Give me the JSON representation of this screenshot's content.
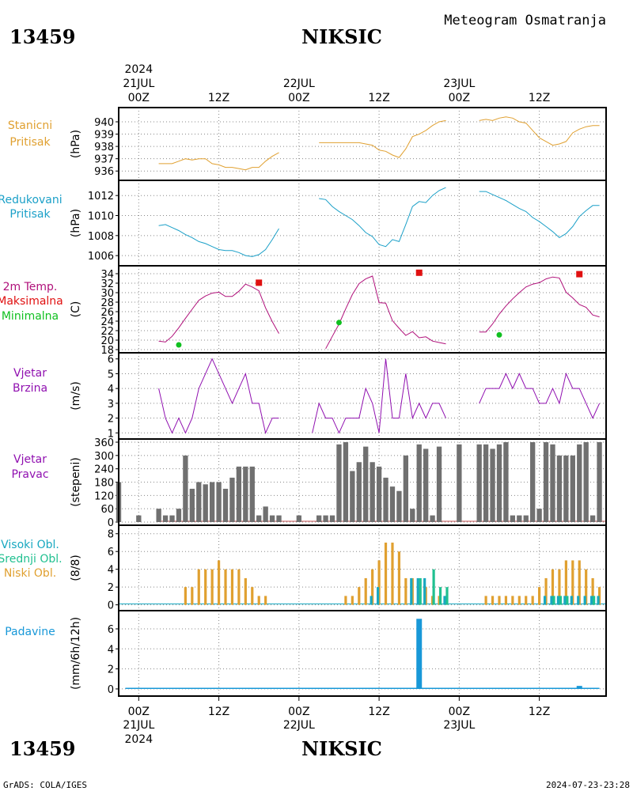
{
  "header": {
    "station_id": "13459",
    "station_name": "NIKSIC",
    "chart_title": "Meteogram Osmatranja"
  },
  "footer": {
    "station_id": "13459",
    "station_name": "NIKSIC",
    "credit": "GrADS: COLA/IGES",
    "timestamp": "2024-07-23-23:28"
  },
  "time_axis": {
    "year": "2024",
    "ticks": [
      {
        "hour": 0,
        "label": "00Z",
        "date": "21JUL"
      },
      {
        "hour": 12,
        "label": "12Z",
        "date": ""
      },
      {
        "hour": 24,
        "label": "00Z",
        "date": "22JUL"
      },
      {
        "hour": 36,
        "label": "12Z",
        "date": ""
      },
      {
        "hour": 48,
        "label": "00Z",
        "date": "23JUL"
      },
      {
        "hour": 60,
        "label": "12Z",
        "date": ""
      }
    ],
    "range_hours": [
      -3,
      70
    ]
  },
  "colors": {
    "station_pressure": "#e0a030",
    "reduced_pressure": "#1ba0c8",
    "temperature": "#b0107a",
    "tmax": "#e01010",
    "tmin": "#10c020",
    "wind": "#9010b0",
    "direction_bar": "#707070",
    "high_cloud": "#18a8c0",
    "mid_cloud": "#20c090",
    "low_cloud": "#e0a030",
    "precip": "#1898d8"
  },
  "chart_data": [
    {
      "type": "line",
      "panel": "station_pressure",
      "labels": [
        "Stanicni",
        "Pritisak"
      ],
      "ylabel": "(hPa)",
      "ylim": [
        935.5,
        940.9
      ],
      "yticks": [
        936,
        937,
        938,
        939,
        940
      ],
      "series": [
        {
          "x": [
            3,
            4,
            5,
            6,
            7,
            8,
            9,
            10,
            11,
            12,
            13,
            14,
            15,
            16,
            17,
            18,
            19,
            20,
            21
          ],
          "y": [
            936.6,
            936.6,
            936.6,
            936.8,
            937.0,
            936.9,
            937.0,
            937.0,
            936.6,
            936.5,
            936.3,
            936.3,
            936.2,
            936.1,
            936.3,
            936.3,
            936.8,
            937.2,
            937.5
          ]
        },
        {
          "x": [
            27,
            28,
            29,
            30,
            31,
            32,
            33,
            34,
            35,
            36,
            37,
            38,
            39,
            40,
            41,
            42,
            43,
            44,
            45,
            46
          ],
          "y": [
            938.3,
            938.3,
            938.3,
            938.3,
            938.3,
            938.3,
            938.3,
            938.2,
            938.1,
            937.7,
            937.6,
            937.3,
            937.1,
            937.8,
            938.8,
            939.0,
            939.3,
            939.7,
            940.0,
            940.1
          ]
        },
        {
          "x": [
            51,
            52,
            53,
            54,
            55,
            56,
            57,
            58,
            59,
            60,
            61,
            62,
            63,
            64,
            65,
            66,
            67,
            68,
            69
          ],
          "y": [
            940.1,
            940.2,
            940.1,
            940.3,
            940.4,
            940.3,
            940.0,
            939.9,
            939.3,
            938.7,
            938.4,
            938.1,
            938.2,
            938.4,
            939.1,
            939.4,
            939.6,
            939.7,
            939.7
          ]
        }
      ]
    },
    {
      "type": "line",
      "panel": "reduced_pressure",
      "labels": [
        "Redukovani",
        "Pritisak"
      ],
      "ylabel": "(hPa)",
      "ylim": [
        1005.3,
        1013.2
      ],
      "yticks": [
        1006,
        1008,
        1010,
        1012
      ],
      "series": [
        {
          "x": [
            3,
            4,
            5,
            6,
            7,
            8,
            9,
            10,
            11,
            12,
            13,
            14,
            15,
            16,
            17,
            18,
            19,
            20,
            21
          ],
          "y": [
            1009.0,
            1009.1,
            1008.8,
            1008.5,
            1008.1,
            1007.8,
            1007.4,
            1007.2,
            1006.9,
            1006.6,
            1006.5,
            1006.5,
            1006.3,
            1006.0,
            1005.9,
            1006.1,
            1006.6,
            1007.6,
            1008.7
          ]
        },
        {
          "x": [
            27,
            28,
            29,
            30,
            31,
            32,
            33,
            34,
            35,
            36,
            37,
            38,
            39,
            40,
            41,
            42,
            43,
            44,
            45,
            46
          ],
          "y": [
            1011.7,
            1011.6,
            1010.9,
            1010.4,
            1010.0,
            1009.6,
            1009.0,
            1008.3,
            1007.9,
            1007.1,
            1006.9,
            1007.6,
            1007.4,
            1009.1,
            1010.9,
            1011.4,
            1011.3,
            1012.0,
            1012.5,
            1012.8
          ]
        },
        {
          "x": [
            51,
            52,
            53,
            54,
            55,
            56,
            57,
            58,
            59,
            60,
            61,
            62,
            63,
            64,
            65,
            66,
            67,
            68,
            69
          ],
          "y": [
            1012.4,
            1012.4,
            1012.1,
            1011.8,
            1011.5,
            1011.1,
            1010.7,
            1010.4,
            1009.8,
            1009.4,
            1008.9,
            1008.4,
            1007.8,
            1008.2,
            1008.9,
            1009.9,
            1010.5,
            1011.0,
            1011.0
          ]
        }
      ]
    },
    {
      "type": "line",
      "panel": "temperature",
      "labels": [
        "2m Temp.",
        "Maksimalna",
        "Minimalna"
      ],
      "ylabel": "(C)",
      "ylim": [
        18,
        35
      ],
      "yticks": [
        18,
        20,
        22,
        24,
        26,
        28,
        30,
        32,
        34
      ],
      "series": [
        {
          "x": [
            3,
            4,
            5,
            6,
            7,
            8,
            9,
            10,
            11,
            12,
            13,
            14,
            15,
            16,
            17,
            18,
            19,
            20,
            21
          ],
          "y": [
            19.8,
            19.6,
            20.8,
            22.6,
            24.6,
            26.5,
            28.4,
            29.3,
            29.9,
            30.1,
            29.2,
            29.2,
            30.3,
            31.8,
            31.2,
            30.4,
            26.8,
            23.9,
            21.4
          ]
        },
        {
          "x": [
            28,
            29,
            30,
            31,
            32,
            33,
            34,
            35,
            36,
            37,
            38,
            39,
            40,
            41,
            42,
            43,
            44,
            45,
            46
          ],
          "y": [
            18.2,
            20.8,
            23.4,
            26.6,
            29.6,
            31.9,
            32.9,
            33.5,
            27.9,
            27.8,
            24.1,
            22.5,
            21.0,
            21.8,
            20.5,
            20.7,
            19.8,
            19.5,
            19.2
          ]
        },
        {
          "x": [
            51,
            52,
            53,
            54,
            55,
            56,
            57,
            58,
            59,
            60,
            61,
            62,
            63,
            64,
            65,
            66,
            67,
            68,
            69
          ],
          "y": [
            21.7,
            21.7,
            23.4,
            25.5,
            27.2,
            28.7,
            30.0,
            31.2,
            31.8,
            32.1,
            32.9,
            33.3,
            33.1,
            30.1,
            28.9,
            27.5,
            26.9,
            25.3,
            24.9
          ]
        }
      ],
      "tmax_points": [
        {
          "x": 18,
          "y": 32.1
        },
        {
          "x": 42,
          "y": 34.2
        },
        {
          "x": 66,
          "y": 33.9
        }
      ],
      "tmin_points": [
        {
          "x": 6,
          "y": 19.0
        },
        {
          "x": 30,
          "y": 23.7
        },
        {
          "x": 54,
          "y": 21.1
        }
      ]
    },
    {
      "type": "line",
      "panel": "wind_speed",
      "labels": [
        "Vjetar",
        "Brzina"
      ],
      "ylabel": "(m/s)",
      "ylim": [
        0.8,
        6.2
      ],
      "yticks": [
        1,
        2,
        3,
        4,
        5,
        6
      ],
      "series": [
        {
          "x": [
            3,
            4,
            5,
            6,
            7,
            8,
            9,
            10,
            11,
            12,
            13,
            14,
            15,
            16,
            17,
            18,
            19,
            20,
            21
          ],
          "y": [
            4,
            2,
            1,
            2,
            1,
            2,
            4,
            5,
            6,
            5,
            4,
            3,
            4,
            5,
            3,
            3,
            1,
            2,
            2
          ]
        },
        {
          "x": [
            26,
            27,
            28,
            29,
            30,
            31,
            32,
            33,
            34,
            35,
            36,
            37,
            38,
            39,
            40,
            41,
            42,
            43,
            44,
            45,
            46
          ],
          "y": [
            1,
            3,
            2,
            2,
            1,
            2,
            2,
            2,
            4,
            3,
            1,
            6,
            2,
            2,
            5,
            2,
            3,
            2,
            3,
            3,
            2
          ]
        },
        {
          "x": [
            51,
            52,
            53,
            54,
            55,
            56,
            57,
            58,
            59,
            60,
            61,
            62,
            63,
            64,
            65,
            66,
            67,
            68,
            69
          ],
          "y": [
            3,
            4,
            4,
            4,
            5,
            4,
            5,
            4,
            4,
            3,
            3,
            4,
            3,
            5,
            4,
            4,
            3,
            2,
            3
          ]
        }
      ]
    },
    {
      "type": "bar",
      "panel": "wind_direction",
      "labels": [
        "Vjetar",
        "Pravac"
      ],
      "ylabel": "(stepeni)",
      "ylim": [
        0,
        360
      ],
      "yticks": [
        0,
        60,
        120,
        180,
        240,
        300,
        360
      ],
      "x": [
        -3,
        0,
        3,
        4,
        5,
        6,
        7,
        8,
        9,
        10,
        11,
        12,
        13,
        14,
        15,
        16,
        17,
        18,
        19,
        20,
        21,
        24,
        27,
        28,
        29,
        30,
        31,
        32,
        33,
        34,
        35,
        36,
        37,
        38,
        39,
        40,
        41,
        42,
        43,
        44,
        45,
        48,
        51,
        52,
        53,
        54,
        55,
        56,
        57,
        58,
        59,
        60,
        61,
        62,
        63,
        64,
        65,
        66,
        67,
        68,
        69
      ],
      "values": [
        180,
        30,
        60,
        30,
        30,
        60,
        300,
        150,
        180,
        170,
        180,
        180,
        150,
        200,
        250,
        250,
        250,
        30,
        70,
        30,
        30,
        30,
        30,
        30,
        30,
        350,
        360,
        230,
        270,
        340,
        270,
        250,
        200,
        160,
        140,
        300,
        60,
        350,
        330,
        30,
        340,
        350,
        350,
        350,
        330,
        350,
        360,
        30,
        30,
        30,
        360,
        60,
        360,
        350,
        300,
        300,
        300,
        350,
        360,
        30,
        360
      ],
      "bar_width_hours": 0.75
    },
    {
      "type": "bar",
      "panel": "clouds",
      "labels": [
        "Visoki Obl.",
        "Srednji Obl.",
        "Niski Obl."
      ],
      "ylabel": "(8/8)",
      "ylim": [
        -0.3,
        8.6
      ],
      "yticks": [
        0,
        2,
        4,
        6,
        8
      ],
      "x_range": [
        -3,
        70
      ],
      "baseline_value": 0.1,
      "series": [
        {
          "name": "Niski Obl.",
          "x": [
            7,
            8,
            9,
            10,
            11,
            12,
            13,
            14,
            15,
            16,
            17,
            18,
            19,
            31,
            32,
            33,
            34,
            35,
            36,
            37,
            38,
            39,
            40,
            41,
            42,
            43,
            44,
            45,
            46,
            52,
            53,
            54,
            55,
            56,
            57,
            58,
            59,
            60,
            61,
            62,
            63,
            64,
            65,
            66,
            67,
            68,
            69
          ],
          "values": [
            2,
            2,
            4,
            4,
            4,
            5,
            4,
            4,
            4,
            3,
            2,
            1,
            1,
            1,
            1,
            2,
            3,
            4,
            5,
            7,
            7,
            6,
            3,
            3,
            2,
            2,
            1,
            1,
            1,
            1,
            1,
            1,
            1,
            1,
            1,
            1,
            1,
            2,
            3,
            4,
            4,
            5,
            5,
            5,
            4,
            3,
            2
          ]
        },
        {
          "name": "Visoki Obl.",
          "x": [
            35,
            36,
            41,
            42,
            43,
            46,
            61,
            62,
            63,
            64,
            65,
            66,
            67,
            68,
            69
          ],
          "values": [
            1,
            2,
            3,
            3,
            3,
            1,
            1,
            1,
            1,
            1,
            1,
            1,
            1,
            1,
            1
          ]
        },
        {
          "name": "Srednji Obl.",
          "x": [
            42,
            44,
            45,
            46,
            62,
            63,
            64,
            68
          ],
          "values": [
            3,
            4,
            2,
            2,
            1,
            1,
            1,
            1
          ]
        }
      ]
    },
    {
      "type": "bar",
      "panel": "precipitation",
      "labels": [
        "Padavine"
      ],
      "ylabel": "(mm/6h/12h)",
      "ylim": [
        -0.4,
        7.5
      ],
      "yticks": [
        0,
        2,
        4,
        6
      ],
      "x_range": [
        -2,
        69
      ],
      "baseline_value": 0.05,
      "bars": [
        {
          "x": 42,
          "value": 7.0
        },
        {
          "x": 66,
          "value": 0.3
        }
      ]
    }
  ]
}
